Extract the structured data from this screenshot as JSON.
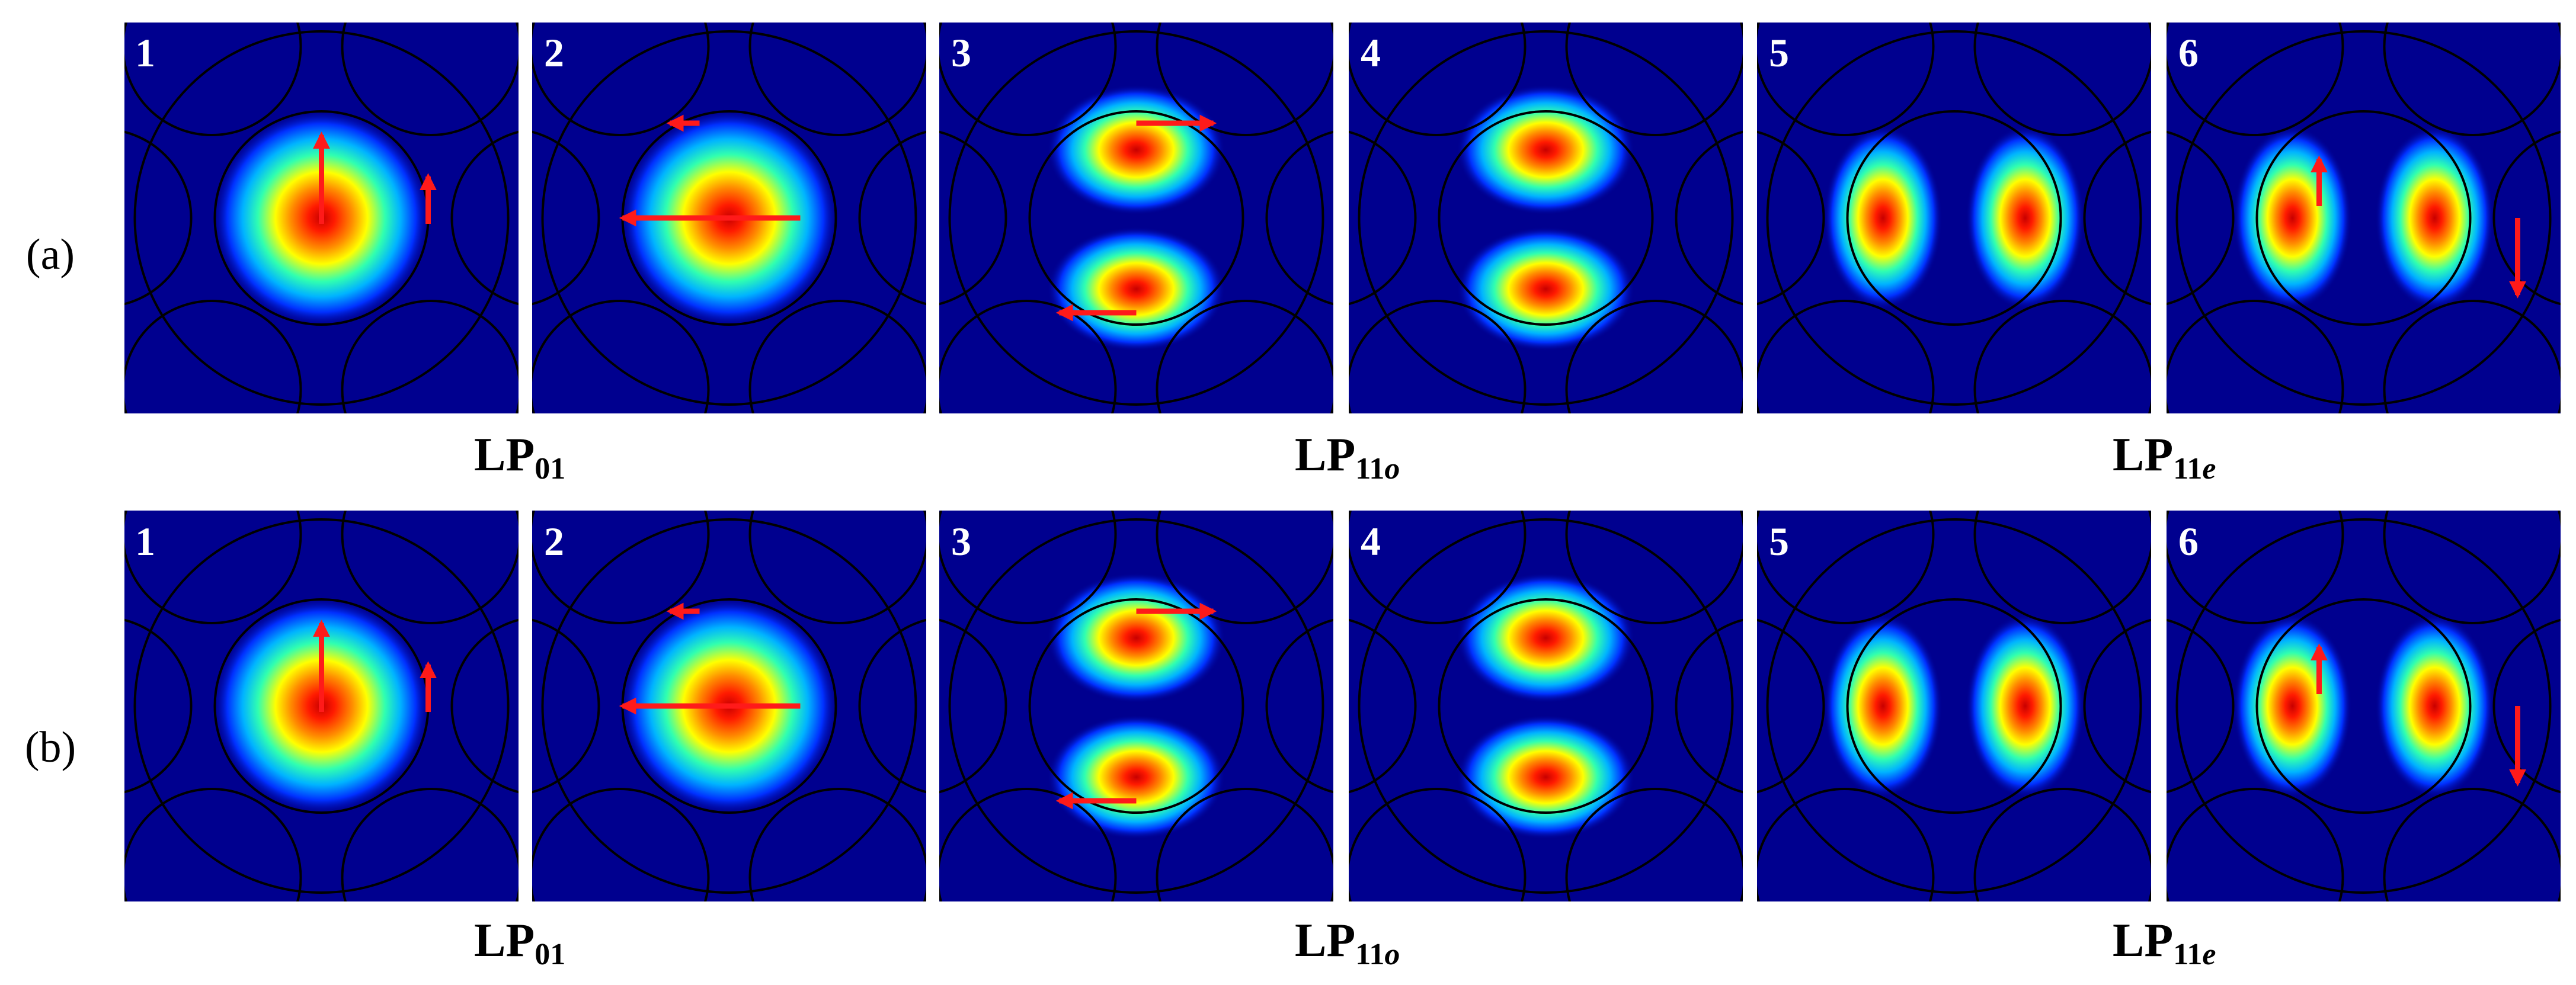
{
  "rows": [
    {
      "label": "(a)",
      "panels": [
        {
          "number": "1"
        },
        {
          "number": "2"
        },
        {
          "number": "3"
        },
        {
          "number": "4"
        },
        {
          "number": "5"
        },
        {
          "number": "6"
        }
      ],
      "mode_labels": [
        {
          "base": "LP",
          "sub": "01",
          "suffix": ""
        },
        {
          "base": "LP",
          "sub": "11",
          "suffix": "o"
        },
        {
          "base": "LP",
          "sub": "11",
          "suffix": "e"
        }
      ]
    },
    {
      "label": "(b)",
      "panels": [
        {
          "number": "1"
        },
        {
          "number": "2"
        },
        {
          "number": "3"
        },
        {
          "number": "4"
        },
        {
          "number": "5"
        },
        {
          "number": "6"
        }
      ],
      "mode_labels": [
        {
          "base": "LP",
          "sub": "01",
          "suffix": ""
        },
        {
          "base": "LP",
          "sub": "11",
          "suffix": "o"
        },
        {
          "base": "LP",
          "sub": "11",
          "suffix": "e"
        }
      ]
    }
  ],
  "colors": {
    "background_field": "#00008f",
    "core_outline": "#000000",
    "arrow": "#ff1a1a",
    "panel_number": "#ffffff"
  }
}
